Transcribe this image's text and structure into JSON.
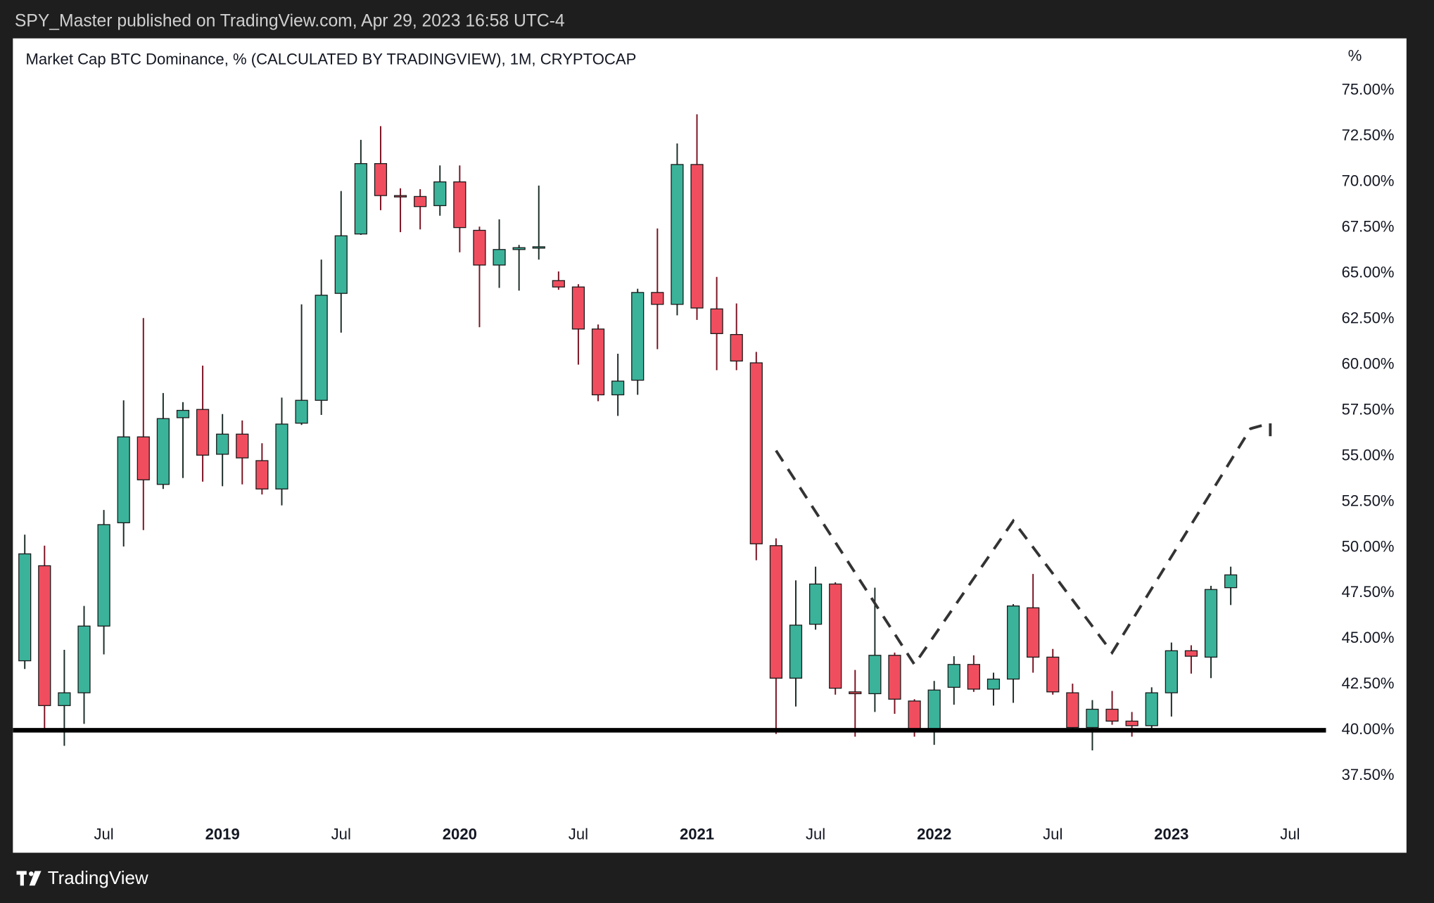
{
  "header": {
    "text": "SPY_Master published on TradingView.com, Apr 29, 2023 16:58 UTC-4"
  },
  "footer": {
    "logo": "TradingView"
  },
  "chart_data": {
    "type": "candlestick",
    "title": "Market Cap BTC Dominance, % (CALCULATED BY TRADINGVIEW), 1M, CRYPTOCAP",
    "y_unit": "%",
    "up_color": "#3bb39a",
    "down_color": "#f04e5f",
    "x": [
      "2018-03",
      "2018-04",
      "2018-05",
      "2018-06",
      "2018-07",
      "2018-08",
      "2018-09",
      "2018-10",
      "2018-11",
      "2018-12",
      "2019-01",
      "2019-02",
      "2019-03",
      "2019-04",
      "2019-05",
      "2019-06",
      "2019-07",
      "2019-08",
      "2019-09",
      "2019-10",
      "2019-11",
      "2019-12",
      "2020-01",
      "2020-02",
      "2020-03",
      "2020-04",
      "2020-05",
      "2020-06",
      "2020-07",
      "2020-08",
      "2020-09",
      "2020-10",
      "2020-11",
      "2020-12",
      "2021-01",
      "2021-02",
      "2021-03",
      "2021-04",
      "2021-05",
      "2021-06",
      "2021-07",
      "2021-08",
      "2021-09",
      "2021-10",
      "2021-11",
      "2021-12",
      "2022-01",
      "2022-02",
      "2022-03",
      "2022-04",
      "2022-05",
      "2022-06",
      "2022-07",
      "2022-08",
      "2022-09",
      "2022-10",
      "2022-11",
      "2022-12",
      "2023-01",
      "2023-02",
      "2023-03",
      "2023-04"
    ],
    "open": [
      43.8,
      49.0,
      41.35,
      42.05,
      45.7,
      51.35,
      56.05,
      53.45,
      57.1,
      57.55,
      55.1,
      56.2,
      54.75,
      53.2,
      56.8,
      58.05,
      63.9,
      67.15,
      71.0,
      69.25,
      69.2,
      68.7,
      70.0,
      67.35,
      65.45,
      66.3,
      66.4,
      64.6,
      64.25,
      61.95,
      58.35,
      59.15,
      63.95,
      63.3,
      70.95,
      63.05,
      61.65,
      60.1,
      50.1,
      42.85,
      45.8,
      48.0,
      42.1,
      42.0,
      44.1,
      41.6,
      39.95,
      42.35,
      43.6,
      42.25,
      42.8,
      46.7,
      44.0,
      42.05,
      40.15,
      41.15,
      40.5,
      40.25,
      42.05,
      44.35,
      44.0,
      47.8
    ],
    "high": [
      50.7,
      50.1,
      44.4,
      46.8,
      52.05,
      58.05,
      62.55,
      58.45,
      57.95,
      59.95,
      57.3,
      56.95,
      55.7,
      58.2,
      63.3,
      65.75,
      69.5,
      72.3,
      73.05,
      69.65,
      69.6,
      70.9,
      70.9,
      67.55,
      67.95,
      66.55,
      69.8,
      65.1,
      64.4,
      62.2,
      60.6,
      64.15,
      67.45,
      72.1,
      73.7,
      64.8,
      63.35,
      60.7,
      50.5,
      48.2,
      48.95,
      48.1,
      43.3,
      47.8,
      44.25,
      41.7,
      42.7,
      44.05,
      44.1,
      43.15,
      46.9,
      48.55,
      44.45,
      42.55,
      41.65,
      42.15,
      41.0,
      42.35,
      44.8,
      44.65,
      47.9,
      48.95
    ],
    "low": [
      43.35,
      39.95,
      39.15,
      40.35,
      44.15,
      50.05,
      50.95,
      53.2,
      53.8,
      53.6,
      53.35,
      53.45,
      52.9,
      52.3,
      56.7,
      57.25,
      61.75,
      67.1,
      68.45,
      67.25,
      67.4,
      68.15,
      66.15,
      62.05,
      64.2,
      64.05,
      65.75,
      64.1,
      60.0,
      58.0,
      57.2,
      58.35,
      60.85,
      62.7,
      62.45,
      59.7,
      59.7,
      49.3,
      39.8,
      41.3,
      45.5,
      41.95,
      39.65,
      41.0,
      40.9,
      39.65,
      39.2,
      41.4,
      42.1,
      41.35,
      41.5,
      43.15,
      41.95,
      39.9,
      38.9,
      40.3,
      39.65,
      40.05,
      40.75,
      43.1,
      42.85,
      46.85
    ],
    "close": [
      49.65,
      41.35,
      42.05,
      45.7,
      51.25,
      56.05,
      53.7,
      57.05,
      57.5,
      55.05,
      56.2,
      54.9,
      53.2,
      56.75,
      58.05,
      63.8,
      67.05,
      71.0,
      69.25,
      69.2,
      68.65,
      70.0,
      67.5,
      65.45,
      66.3,
      66.4,
      66.45,
      64.25,
      61.95,
      58.35,
      59.1,
      63.95,
      63.3,
      70.95,
      63.1,
      61.7,
      60.2,
      50.2,
      42.85,
      45.75,
      48.0,
      42.3,
      42.0,
      44.1,
      41.7,
      40.0,
      42.2,
      43.6,
      42.25,
      42.8,
      46.8,
      44.0,
      42.1,
      40.15,
      41.15,
      40.5,
      40.25,
      42.05,
      44.35,
      44.05,
      47.7,
      48.5
    ],
    "ylim": [
      35.2,
      77.85
    ],
    "yticks": [
      {
        "value": 37.5,
        "label": "37.50%"
      },
      {
        "value": 40,
        "label": "40.00%"
      },
      {
        "value": 42.5,
        "label": "42.50%"
      },
      {
        "value": 45,
        "label": "45.00%"
      },
      {
        "value": 47.5,
        "label": "47.50%"
      },
      {
        "value": 50,
        "label": "50.00%"
      },
      {
        "value": 52.5,
        "label": "52.50%"
      },
      {
        "value": 55,
        "label": "55.00%"
      },
      {
        "value": 57.5,
        "label": "57.50%"
      },
      {
        "value": 60,
        "label": "60.00%"
      },
      {
        "value": 62.5,
        "label": "62.50%"
      },
      {
        "value": 65,
        "label": "65.00%"
      },
      {
        "value": 67.5,
        "label": "67.50%"
      },
      {
        "value": 70,
        "label": "70.00%"
      },
      {
        "value": 72.5,
        "label": "72.50%"
      },
      {
        "value": 75,
        "label": "75.00%"
      }
    ],
    "xticks": [
      {
        "value": "2018-07",
        "label": "Jul"
      },
      {
        "value": "2019-01",
        "label": "2019"
      },
      {
        "value": "2019-07",
        "label": "Jul"
      },
      {
        "value": "2020-01",
        "label": "2020"
      },
      {
        "value": "2020-07",
        "label": "Jul"
      },
      {
        "value": "2021-01",
        "label": "2021"
      },
      {
        "value": "2021-07",
        "label": "Jul"
      },
      {
        "value": "2022-01",
        "label": "2022"
      },
      {
        "value": "2022-07",
        "label": "Jul"
      },
      {
        "value": "2023-01",
        "label": "2023"
      },
      {
        "value": "2023-07",
        "label": "Jul"
      }
    ],
    "support_line": {
      "value": 40,
      "color": "#000000"
    },
    "projection": {
      "color": "#333333",
      "x": [
        "2021-05",
        "2021-12",
        "2022-05",
        "2022-10",
        "2023-05",
        "2023-06",
        "2023-06"
      ],
      "y": [
        55.3,
        43.6,
        51.45,
        44.25,
        56.5,
        56.8,
        55.7
      ]
    }
  }
}
